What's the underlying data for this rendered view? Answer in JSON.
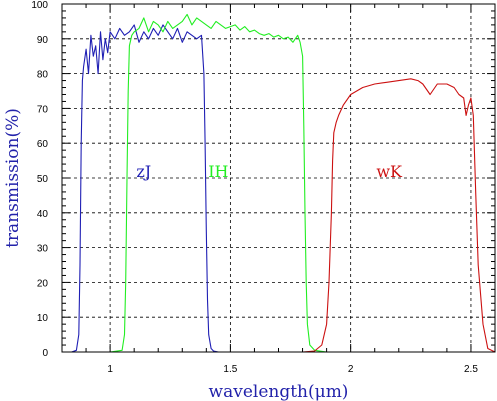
{
  "chart_data": {
    "type": "line",
    "xlabel": "wavelength(μm)",
    "ylabel": "transmission(%)",
    "xlim": [
      0.8,
      2.6
    ],
    "ylim": [
      0,
      100
    ],
    "x_ticks": [
      1,
      1.5,
      2,
      2.5
    ],
    "x_tick_labels": [
      "1",
      "1.5",
      "2",
      "2.5"
    ],
    "y_ticks": [
      0,
      10,
      20,
      30,
      40,
      50,
      60,
      70,
      80,
      90,
      100
    ],
    "grid": true,
    "series": [
      {
        "name": "zJ",
        "color": "#1f1fb4",
        "label_pos": [
          1.14,
          52
        ],
        "x": [
          0.8,
          0.84,
          0.86,
          0.87,
          0.875,
          0.88,
          0.885,
          0.89,
          0.9,
          0.91,
          0.92,
          0.93,
          0.94,
          0.95,
          0.96,
          0.97,
          0.98,
          0.99,
          1.0,
          1.02,
          1.04,
          1.06,
          1.08,
          1.1,
          1.12,
          1.14,
          1.16,
          1.18,
          1.2,
          1.22,
          1.24,
          1.26,
          1.28,
          1.3,
          1.32,
          1.34,
          1.36,
          1.38,
          1.39,
          1.395,
          1.4,
          1.405,
          1.41,
          1.42,
          1.43,
          1.45,
          1.5,
          2.0,
          2.6
        ],
        "y": [
          0,
          0,
          0.5,
          5,
          25,
          60,
          78,
          82,
          87,
          80,
          91,
          85,
          88,
          80,
          92,
          84,
          90,
          86,
          92,
          90,
          93,
          91,
          92,
          94,
          89,
          92,
          90,
          93,
          91,
          94,
          92,
          90,
          93,
          89,
          92,
          91,
          90,
          91,
          80,
          60,
          35,
          15,
          5,
          1,
          0.3,
          0,
          0,
          0,
          0
        ]
      },
      {
        "name": "IH",
        "color": "#22ee22",
        "label_pos": [
          1.45,
          52
        ],
        "x": [
          0.8,
          1.0,
          1.05,
          1.06,
          1.065,
          1.07,
          1.075,
          1.08,
          1.09,
          1.1,
          1.12,
          1.14,
          1.16,
          1.18,
          1.2,
          1.22,
          1.24,
          1.26,
          1.28,
          1.3,
          1.32,
          1.34,
          1.36,
          1.38,
          1.4,
          1.42,
          1.44,
          1.46,
          1.48,
          1.5,
          1.52,
          1.54,
          1.56,
          1.58,
          1.6,
          1.62,
          1.64,
          1.66,
          1.68,
          1.7,
          1.72,
          1.74,
          1.76,
          1.78,
          1.79,
          1.8,
          1.805,
          1.81,
          1.815,
          1.82,
          1.83,
          1.85,
          1.9,
          2.6
        ],
        "y": [
          0,
          0,
          0.5,
          5,
          20,
          50,
          75,
          88,
          91,
          92,
          93,
          96,
          92,
          95,
          94,
          92,
          95,
          93,
          94,
          95,
          97,
          94,
          96,
          95,
          94,
          93,
          95,
          94,
          93,
          93.5,
          94,
          92.5,
          93.5,
          92,
          92.5,
          91.5,
          91,
          91.5,
          90.5,
          91,
          90,
          90.5,
          89,
          91,
          89,
          85,
          65,
          40,
          20,
          8,
          2,
          0.5,
          0,
          0
        ]
      },
      {
        "name": "wK",
        "color": "#cc1111",
        "label_pos": [
          2.16,
          52
        ],
        "x": [
          0.8,
          1.8,
          1.85,
          1.88,
          1.9,
          1.91,
          1.92,
          1.925,
          1.93,
          1.94,
          1.95,
          1.97,
          2.0,
          2.05,
          2.1,
          2.15,
          2.2,
          2.25,
          2.28,
          2.3,
          2.33,
          2.36,
          2.4,
          2.43,
          2.45,
          2.47,
          2.48,
          2.49,
          2.5,
          2.51,
          2.52,
          2.53,
          2.55,
          2.57,
          2.6
        ],
        "y": [
          0,
          0,
          0.3,
          2,
          8,
          20,
          40,
          55,
          63,
          66,
          68,
          71,
          74,
          76,
          77,
          77.5,
          78,
          78.5,
          78,
          77,
          74,
          77,
          77,
          76,
          74,
          73,
          68,
          71,
          73,
          68,
          45,
          25,
          8,
          1,
          0
        ]
      }
    ]
  }
}
